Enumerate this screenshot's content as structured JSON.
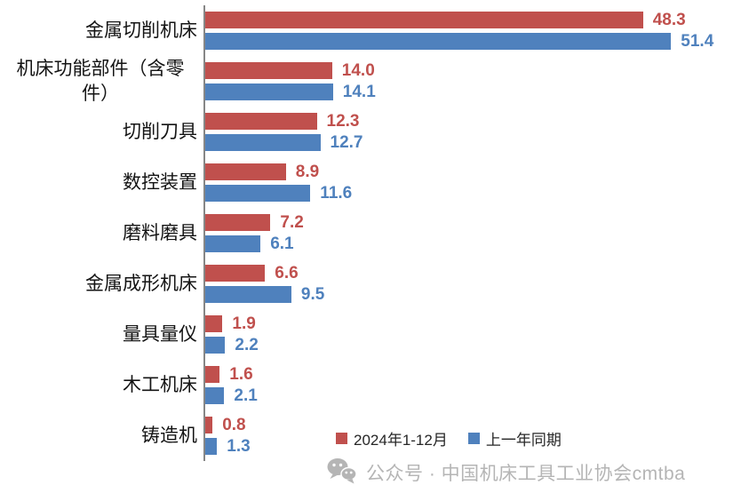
{
  "chart_data": {
    "type": "bar",
    "orientation": "horizontal",
    "title": "",
    "xlabel": "",
    "ylabel": "",
    "xlim": [
      0,
      59
    ],
    "grid": false,
    "value_labels_shown": true,
    "legend_position": "bottom",
    "axis_color": "#868686",
    "categories": [
      "金属切削机床",
      "机床功能部件（含零件）",
      "切削刀具",
      "数控装置",
      "磨料磨具",
      "金属成形机床",
      "量具量仪",
      "木工机床",
      "铸造机"
    ],
    "series": [
      {
        "name": "2024年1-12月",
        "color": "#C0504D",
        "values": [
          48.3,
          14.0,
          12.3,
          8.9,
          7.2,
          6.6,
          1.9,
          1.6,
          0.8
        ],
        "labels": [
          "48.3",
          "14.0",
          "12.3",
          "8.9",
          "7.2",
          "6.6",
          "1.9",
          "1.6",
          "0.8"
        ]
      },
      {
        "name": "上一年同期",
        "color": "#4F81BD",
        "values": [
          51.4,
          14.1,
          12.7,
          11.6,
          6.1,
          9.5,
          2.2,
          2.1,
          1.3
        ],
        "labels": [
          "51.4",
          "14.1",
          "12.7",
          "11.6",
          "6.1",
          "9.5",
          "2.2",
          "2.1",
          "1.3"
        ]
      }
    ]
  },
  "legend": {
    "items": [
      {
        "label": "2024年1-12月",
        "color": "#C0504D"
      },
      {
        "label": "上一年同期",
        "color": "#4F81BD"
      }
    ]
  },
  "footer": {
    "icon": "wechat-icon",
    "icon_color": "#b5b5b5",
    "text": "公众号 · 中国机床工具工业协会cmtba"
  }
}
